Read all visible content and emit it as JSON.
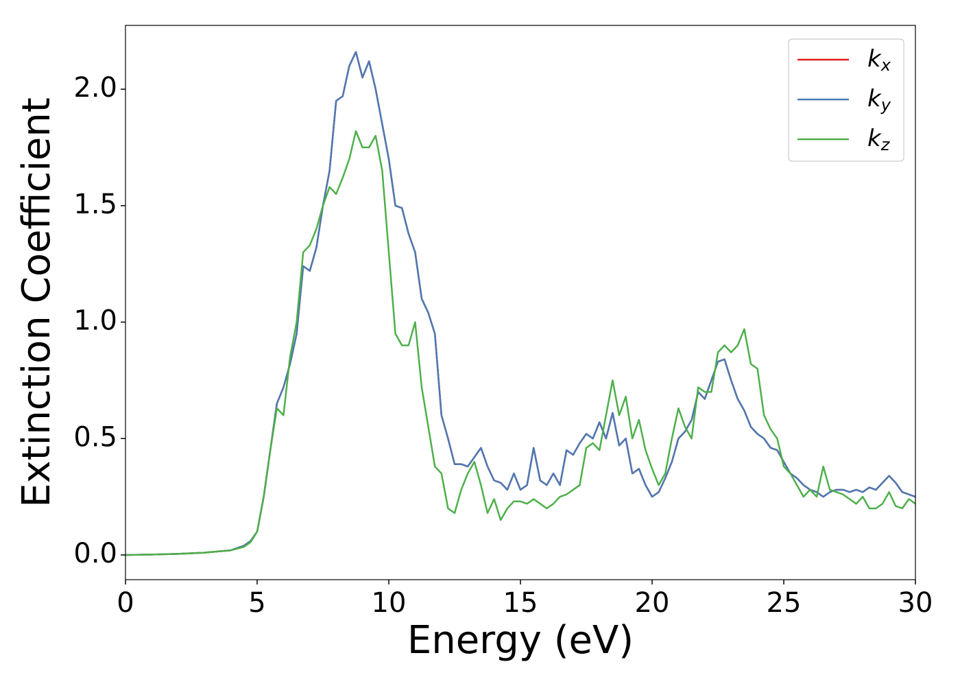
{
  "chart_data": {
    "type": "line",
    "xlabel": "Energy (eV)",
    "ylabel": "Extinction Coefficient",
    "x": [
      0,
      1,
      2,
      3,
      3.5,
      4,
      4.5,
      4.75,
      5,
      5.25,
      5.5,
      5.75,
      6,
      6.25,
      6.5,
      6.75,
      7,
      7.25,
      7.5,
      7.75,
      8,
      8.25,
      8.5,
      8.75,
      9,
      9.25,
      9.5,
      9.75,
      10,
      10.25,
      10.5,
      10.75,
      11,
      11.25,
      11.5,
      11.75,
      12,
      12.25,
      12.5,
      12.75,
      13,
      13.25,
      13.5,
      13.75,
      14,
      14.25,
      14.5,
      14.75,
      15,
      15.25,
      15.5,
      15.75,
      16,
      16.25,
      16.5,
      16.75,
      17,
      17.25,
      17.5,
      17.75,
      18,
      18.25,
      18.5,
      18.75,
      19,
      19.25,
      19.5,
      19.75,
      20,
      20.25,
      20.5,
      20.75,
      21,
      21.25,
      21.5,
      21.75,
      22,
      22.25,
      22.5,
      22.75,
      23,
      23.25,
      23.5,
      23.75,
      24,
      24.25,
      24.5,
      24.75,
      25,
      25.25,
      25.5,
      25.75,
      26,
      26.25,
      26.5,
      26.75,
      27,
      27.25,
      27.5,
      27.75,
      28,
      28.25,
      28.5,
      28.75,
      29,
      29.25,
      29.5,
      29.75,
      30
    ],
    "series": [
      {
        "name": "kx",
        "color": "#e41a1c",
        "values": [
          0,
          0.002,
          0.005,
          0.01,
          0.015,
          0.02,
          0.04,
          0.06,
          0.1,
          0.25,
          0.45,
          0.65,
          0.72,
          0.82,
          0.95,
          1.24,
          1.22,
          1.32,
          1.5,
          1.65,
          1.95,
          1.97,
          2.1,
          2.16,
          2.05,
          2.12,
          2.0,
          1.85,
          1.7,
          1.5,
          1.49,
          1.38,
          1.3,
          1.1,
          1.04,
          0.95,
          0.6,
          0.5,
          0.39,
          0.39,
          0.38,
          0.42,
          0.46,
          0.38,
          0.32,
          0.31,
          0.28,
          0.35,
          0.28,
          0.3,
          0.46,
          0.32,
          0.3,
          0.35,
          0.3,
          0.45,
          0.43,
          0.48,
          0.52,
          0.5,
          0.57,
          0.5,
          0.61,
          0.47,
          0.5,
          0.35,
          0.37,
          0.3,
          0.25,
          0.27,
          0.33,
          0.4,
          0.5,
          0.53,
          0.58,
          0.7,
          0.67,
          0.75,
          0.83,
          0.84,
          0.75,
          0.67,
          0.62,
          0.55,
          0.52,
          0.5,
          0.46,
          0.45,
          0.4,
          0.35,
          0.33,
          0.3,
          0.28,
          0.27,
          0.25,
          0.27,
          0.28,
          0.28,
          0.27,
          0.28,
          0.27,
          0.29,
          0.28,
          0.31,
          0.34,
          0.31,
          0.27,
          0.26,
          0.25
        ]
      },
      {
        "name": "ky",
        "color": "#4a7ab4",
        "values": [
          0,
          0.002,
          0.005,
          0.01,
          0.015,
          0.02,
          0.04,
          0.06,
          0.1,
          0.25,
          0.45,
          0.65,
          0.72,
          0.82,
          0.95,
          1.24,
          1.22,
          1.32,
          1.5,
          1.65,
          1.95,
          1.97,
          2.1,
          2.16,
          2.05,
          2.12,
          2.0,
          1.85,
          1.7,
          1.5,
          1.49,
          1.38,
          1.3,
          1.1,
          1.04,
          0.95,
          0.6,
          0.5,
          0.39,
          0.39,
          0.38,
          0.42,
          0.46,
          0.38,
          0.32,
          0.31,
          0.28,
          0.35,
          0.28,
          0.3,
          0.46,
          0.32,
          0.3,
          0.35,
          0.3,
          0.45,
          0.43,
          0.48,
          0.52,
          0.5,
          0.57,
          0.5,
          0.61,
          0.47,
          0.5,
          0.35,
          0.37,
          0.3,
          0.25,
          0.27,
          0.33,
          0.4,
          0.5,
          0.53,
          0.58,
          0.7,
          0.67,
          0.75,
          0.83,
          0.84,
          0.75,
          0.67,
          0.62,
          0.55,
          0.52,
          0.5,
          0.46,
          0.45,
          0.4,
          0.35,
          0.33,
          0.3,
          0.28,
          0.27,
          0.25,
          0.27,
          0.28,
          0.28,
          0.27,
          0.28,
          0.27,
          0.29,
          0.28,
          0.31,
          0.34,
          0.31,
          0.27,
          0.26,
          0.25
        ]
      },
      {
        "name": "kz",
        "color": "#4daf4a",
        "values": [
          0,
          0.002,
          0.005,
          0.01,
          0.015,
          0.02,
          0.035,
          0.055,
          0.1,
          0.25,
          0.45,
          0.63,
          0.6,
          0.85,
          1.0,
          1.3,
          1.33,
          1.4,
          1.5,
          1.58,
          1.55,
          1.62,
          1.7,
          1.82,
          1.75,
          1.75,
          1.8,
          1.65,
          1.3,
          0.95,
          0.9,
          0.9,
          1.0,
          0.72,
          0.55,
          0.38,
          0.35,
          0.2,
          0.18,
          0.28,
          0.35,
          0.4,
          0.3,
          0.18,
          0.24,
          0.15,
          0.2,
          0.23,
          0.23,
          0.22,
          0.24,
          0.22,
          0.2,
          0.22,
          0.25,
          0.26,
          0.28,
          0.3,
          0.46,
          0.48,
          0.45,
          0.6,
          0.75,
          0.6,
          0.68,
          0.5,
          0.58,
          0.45,
          0.37,
          0.3,
          0.35,
          0.5,
          0.63,
          0.55,
          0.5,
          0.72,
          0.7,
          0.7,
          0.87,
          0.9,
          0.87,
          0.9,
          0.97,
          0.82,
          0.8,
          0.6,
          0.54,
          0.5,
          0.38,
          0.35,
          0.3,
          0.25,
          0.28,
          0.25,
          0.38,
          0.28,
          0.27,
          0.26,
          0.24,
          0.22,
          0.25,
          0.2,
          0.2,
          0.22,
          0.27,
          0.21,
          0.2,
          0.24,
          0.22
        ]
      }
    ],
    "xlim": [
      0,
      30
    ],
    "xticks": [
      0,
      5,
      10,
      15,
      20,
      25,
      30
    ],
    "ylim": [
      -0.106,
      2.274
    ],
    "yticks": [
      {
        "value": 0,
        "label": "0.0"
      },
      0.5,
      {
        "value": 1,
        "label": "1.0"
      },
      1.5,
      {
        "value": 2,
        "label": "2.0"
      }
    ],
    "legend": "upper right",
    "grid": false
  }
}
